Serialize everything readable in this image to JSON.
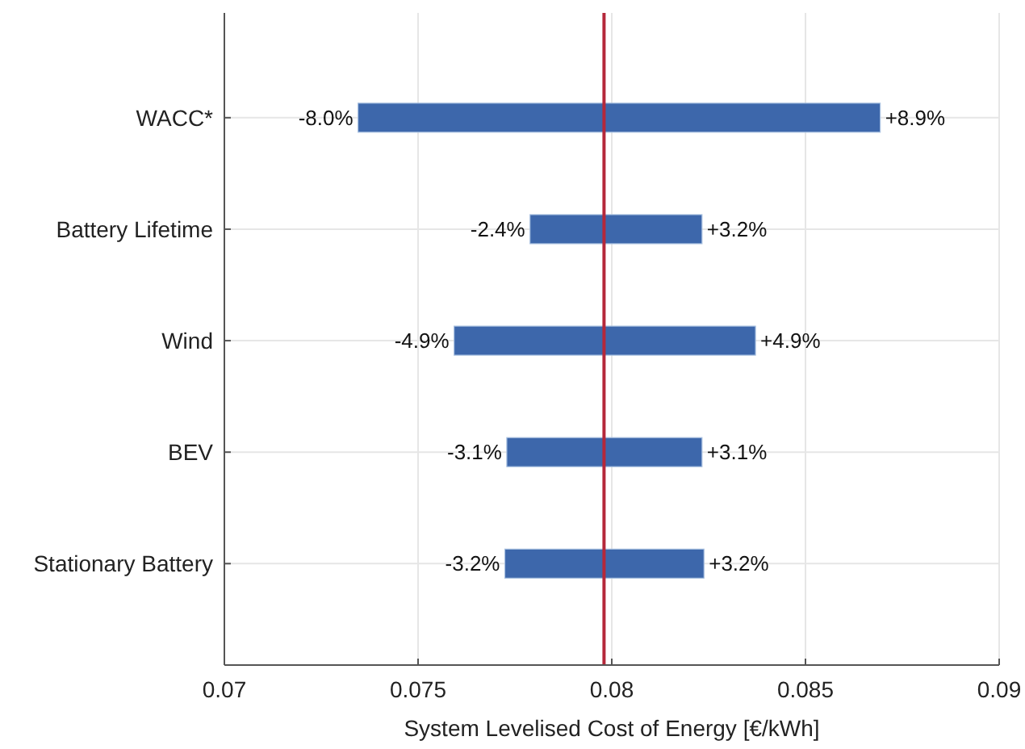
{
  "chart_data": {
    "type": "bar",
    "orientation": "horizontal",
    "xlabel": "System Levelised Cost of Energy [€/kWh]",
    "categories": [
      "WACC*",
      "Battery Lifetime",
      "Wind",
      "BEV",
      "Stationary Battery"
    ],
    "base": [
      0.07345,
      0.07789,
      0.07593,
      0.07729,
      0.07724
    ],
    "values": [
      0.01348,
      0.00444,
      0.00778,
      0.00504,
      0.00514
    ],
    "color": "#3d67ab",
    "xlim": [
      0.07,
      0.09
    ],
    "xticks": [
      0.07,
      0.075,
      0.08,
      0.085,
      0.09
    ],
    "grid": true,
    "ref_lines": [
      {
        "axis": "x",
        "value": 0.0798,
        "color": "#b5283a"
      }
    ],
    "annotations": [
      {
        "text": "-8.0%",
        "x": 0.07345,
        "y": "WACC*"
      },
      {
        "text": "+8.9%",
        "x": 0.08693,
        "y": "WACC*"
      },
      {
        "text": "-2.4%",
        "x": 0.07789,
        "y": "Battery Lifetime"
      },
      {
        "text": "+3.2%",
        "x": 0.08233,
        "y": "Battery Lifetime"
      },
      {
        "text": "-4.9%",
        "x": 0.07593,
        "y": "Wind"
      },
      {
        "text": "+4.9%",
        "x": 0.08371,
        "y": "Wind"
      },
      {
        "text": "-3.1%",
        "x": 0.07729,
        "y": "BEV"
      },
      {
        "text": "+3.1%",
        "x": 0.08233,
        "y": "BEV"
      },
      {
        "text": "-3.2%",
        "x": 0.07724,
        "y": "Stationary Battery"
      },
      {
        "text": "+3.2%",
        "x": 0.08238,
        "y": "Stationary Battery"
      }
    ]
  }
}
